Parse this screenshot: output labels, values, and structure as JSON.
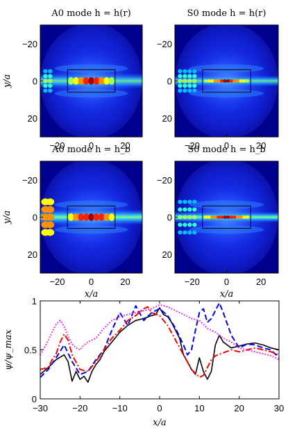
{
  "chart_data": [
    {
      "type": "heatmap",
      "title": "A0 mode h = h(r)",
      "xlabel": "",
      "ylabel": "y/a",
      "xlim": [
        -30,
        30
      ],
      "ylim": [
        30,
        -30
      ],
      "xticks": [
        "−20",
        "0",
        "20"
      ],
      "yticks": [
        "−20",
        "0",
        "20"
      ],
      "colormap": "jet",
      "box": {
        "x": [
          -14,
          14
        ],
        "y": [
          -6,
          6
        ]
      }
    },
    {
      "type": "heatmap",
      "title": "S0 mode h = h(r)",
      "xlabel": "",
      "ylabel": "",
      "xlim": [
        -30,
        30
      ],
      "ylim": [
        30,
        -30
      ],
      "xticks": [
        "−20",
        "0",
        "20"
      ],
      "yticks": [
        "−20",
        "0",
        "20"
      ],
      "colormap": "jet",
      "box": {
        "x": [
          -14,
          14
        ],
        "y": [
          -6,
          6
        ]
      }
    },
    {
      "type": "heatmap",
      "title": "A0 mode h = h_b",
      "xlabel": "x/a",
      "ylabel": "y/a",
      "xlim": [
        -30,
        30
      ],
      "ylim": [
        30,
        -30
      ],
      "xticks": [
        "−20",
        "0",
        "20"
      ],
      "yticks": [
        "−20",
        "0",
        "20"
      ],
      "colormap": "jet",
      "box": {
        "x": [
          -14,
          14
        ],
        "y": [
          -6,
          6
        ]
      }
    },
    {
      "type": "heatmap",
      "title": "S0 mode h = h_b",
      "xlabel": "x/a",
      "ylabel": "",
      "xlim": [
        -30,
        30
      ],
      "ylim": [
        30,
        -30
      ],
      "xticks": [
        "−20",
        "0",
        "20"
      ],
      "yticks": [
        "−20",
        "0",
        "20"
      ],
      "colormap": "jet",
      "box": {
        "x": [
          -14,
          14
        ],
        "y": [
          -6,
          6
        ]
      }
    },
    {
      "type": "line",
      "xlabel": "x/a",
      "ylabel": "ψ/ψ_max",
      "xlim": [
        -30,
        30
      ],
      "ylim": [
        0,
        1
      ],
      "xticks": [
        "−30",
        "−20",
        "−10",
        "0",
        "10",
        "20",
        "30"
      ],
      "yticks": [
        "0",
        "0.5",
        "1"
      ],
      "grid": false,
      "series": [
        {
          "color": "#000000",
          "style": "solid",
          "x": [
            -30,
            -28,
            -26,
            -24,
            -23,
            -22,
            -21,
            -20,
            -19,
            -18,
            -17,
            -16,
            -15,
            -14,
            -12,
            -10,
            -8,
            -6,
            -4,
            -2,
            -1,
            0,
            1,
            2,
            3,
            4,
            5,
            6,
            7,
            8,
            9,
            10,
            11,
            12,
            13,
            14,
            15,
            16,
            18,
            20,
            22,
            24,
            26,
            28,
            30
          ],
          "y": [
            0.25,
            0.32,
            0.4,
            0.45,
            0.38,
            0.18,
            0.28,
            0.2,
            0.23,
            0.17,
            0.28,
            0.35,
            0.4,
            0.48,
            0.58,
            0.68,
            0.75,
            0.8,
            0.82,
            0.85,
            0.86,
            0.93,
            0.86,
            0.84,
            0.78,
            0.7,
            0.62,
            0.45,
            0.38,
            0.3,
            0.25,
            0.42,
            0.28,
            0.2,
            0.28,
            0.55,
            0.65,
            0.58,
            0.52,
            0.54,
            0.56,
            0.57,
            0.55,
            0.52,
            0.5
          ]
        },
        {
          "color": "#0000ff",
          "style": "dashed",
          "x": [
            -30,
            -28,
            -26,
            -24,
            -22,
            -20,
            -18,
            -16,
            -14,
            -12,
            -10,
            -8,
            -6,
            -4,
            -2,
            0,
            2,
            4,
            6,
            7,
            8,
            9,
            10,
            11,
            12,
            13,
            14,
            15,
            16,
            18,
            20,
            22,
            24,
            26,
            28,
            30
          ],
          "y": [
            0.22,
            0.3,
            0.42,
            0.55,
            0.38,
            0.25,
            0.28,
            0.4,
            0.5,
            0.7,
            0.88,
            0.75,
            0.95,
            0.8,
            0.88,
            0.92,
            0.85,
            0.72,
            0.55,
            0.45,
            0.5,
            0.7,
            0.88,
            0.92,
            0.78,
            0.82,
            0.9,
            0.98,
            0.88,
            0.65,
            0.52,
            0.56,
            0.55,
            0.52,
            0.5,
            0.42
          ]
        },
        {
          "color": "#ff0000",
          "style": "dashdot",
          "x": [
            -30,
            -28,
            -27,
            -26,
            -25,
            -24,
            -23,
            -22,
            -20,
            -18,
            -16,
            -14,
            -12,
            -10,
            -8,
            -6,
            -4,
            -3,
            -2,
            0,
            2,
            4,
            6,
            8,
            10,
            11,
            12,
            13,
            14,
            16,
            18,
            20,
            22,
            24,
            26,
            28,
            30
          ],
          "y": [
            0.3,
            0.32,
            0.4,
            0.46,
            0.58,
            0.66,
            0.6,
            0.45,
            0.3,
            0.28,
            0.38,
            0.5,
            0.62,
            0.7,
            0.8,
            0.85,
            0.92,
            0.94,
            0.88,
            0.85,
            0.75,
            0.6,
            0.45,
            0.3,
            0.22,
            0.24,
            0.32,
            0.4,
            0.44,
            0.47,
            0.5,
            0.48,
            0.5,
            0.52,
            0.5,
            0.48,
            0.45
          ]
        },
        {
          "color": "#ff00ff",
          "style": "dotted",
          "x": [
            -30,
            -29,
            -28,
            -27,
            -26,
            -25,
            -24,
            -23,
            -22,
            -21,
            -20,
            -19,
            -18,
            -16,
            -14,
            -12,
            -10,
            -8,
            -6,
            -4,
            -2,
            0,
            2,
            4,
            6,
            8,
            10,
            12,
            14,
            16,
            18,
            20,
            22,
            24,
            26,
            28,
            30
          ],
          "y": [
            0.45,
            0.52,
            0.6,
            0.68,
            0.76,
            0.8,
            0.74,
            0.64,
            0.56,
            0.52,
            0.5,
            0.55,
            0.58,
            0.62,
            0.72,
            0.8,
            0.84,
            0.86,
            0.88,
            0.9,
            0.92,
            0.96,
            0.94,
            0.9,
            0.86,
            0.82,
            0.8,
            0.72,
            0.68,
            0.62,
            0.58,
            0.52,
            0.5,
            0.48,
            0.46,
            0.44,
            0.4
          ]
        }
      ]
    }
  ]
}
